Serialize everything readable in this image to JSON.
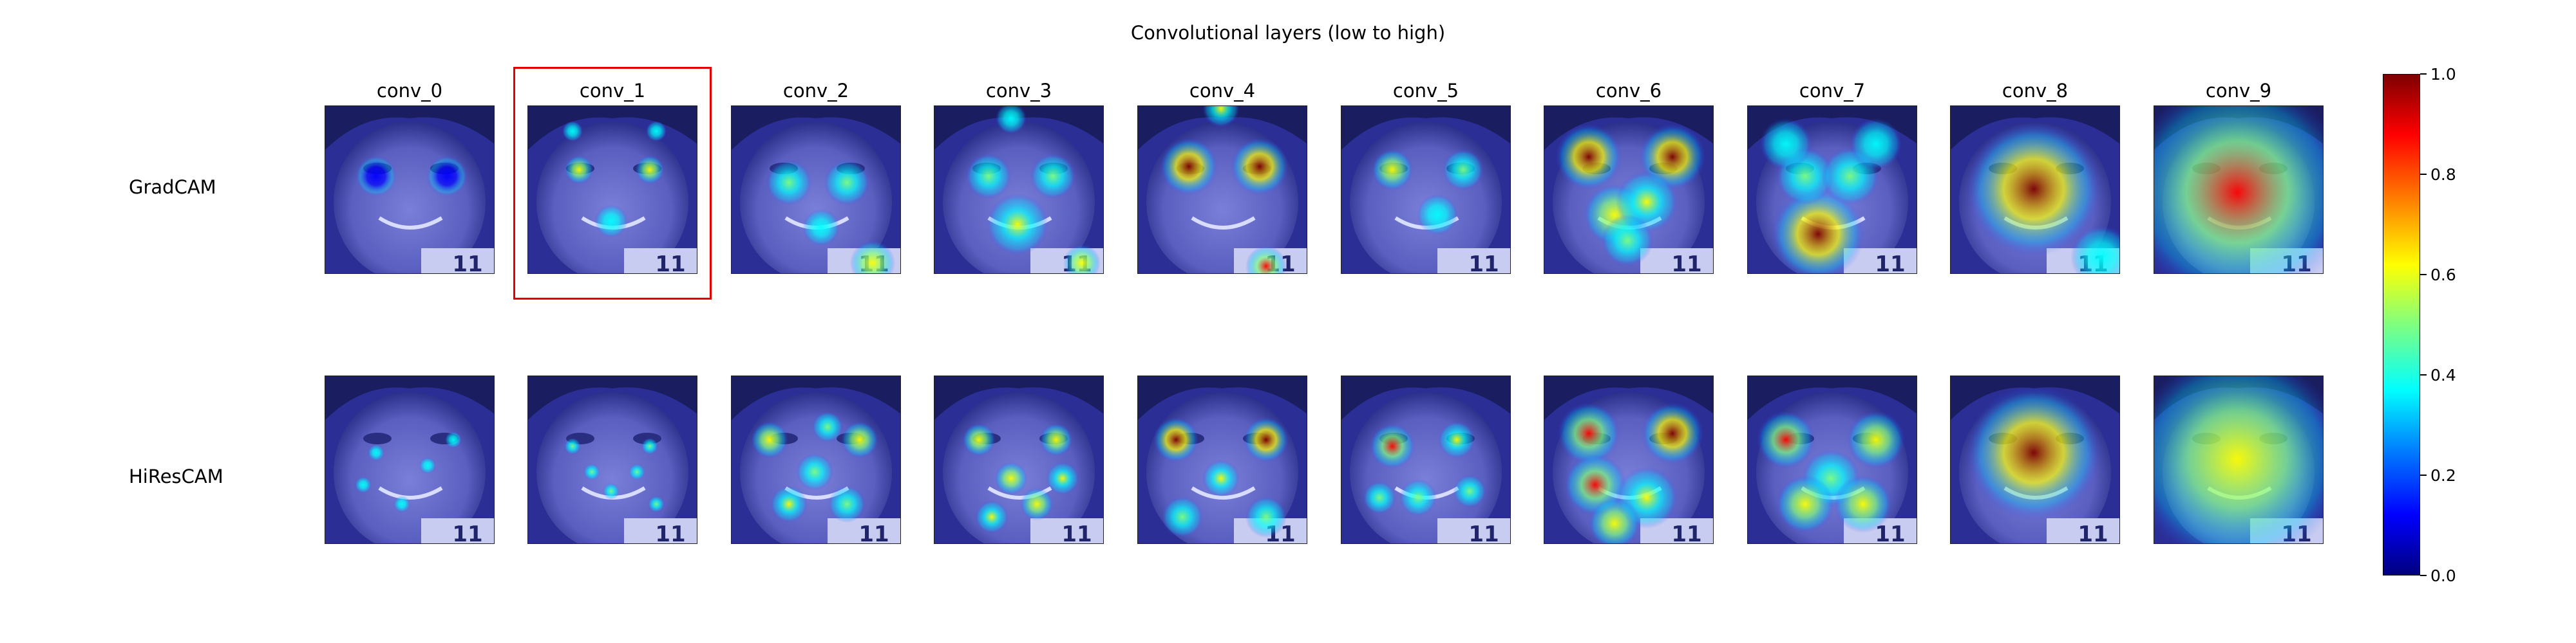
{
  "figure": {
    "title": "Convolutional layers (low to high)",
    "row_labels": [
      "GradCAM",
      "HiResCAM"
    ],
    "columns": [
      "conv_0",
      "conv_1",
      "conv_2",
      "conv_3",
      "conv_4",
      "conv_5",
      "conv_6",
      "conv_7",
      "conv_8",
      "conv_9"
    ],
    "highlighted": {
      "row": "GradCAM",
      "column": "conv_1"
    },
    "colorbar": {
      "ticks": [
        "0.0",
        "0.2",
        "0.4",
        "0.6",
        "0.8",
        "1.0"
      ],
      "colormap": "jet"
    },
    "image_text": "11"
  }
}
